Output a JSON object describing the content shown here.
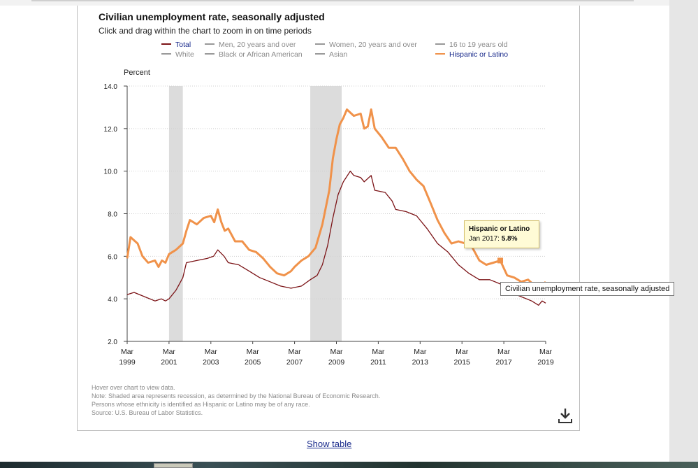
{
  "page": {
    "show_table_label": "Show table"
  },
  "notes": [
    "Hover over chart to view data.",
    "Note: Shaded area represents recession, as determined by the National Bureau of Economic Research.",
    "Persons whose ethnicity is identified as Hispanic or Latino may be of any race.",
    "Source: U.S. Bureau of Labor Statistics."
  ],
  "tooltip": {
    "series": "Hispanic or Latino",
    "label": "Jan 2017:",
    "value": "5.8%"
  },
  "hover_title": "Civilian unemployment rate, seasonally adjusted",
  "icons": {
    "download": "download-icon"
  },
  "colors": {
    "total": "#7b1316",
    "hispanic": "#f0924a",
    "inactive": "#999999",
    "recession": "#dcdcdc"
  },
  "chart_data": {
    "type": "line",
    "title": "Civilian unemployment rate, seasonally adjusted",
    "subtitle": "Click and drag within the chart to zoom in on time periods",
    "ylabel": "Percent",
    "ylim": [
      2.0,
      14.0
    ],
    "yticks": [
      "14.0",
      "12.0",
      "10.0",
      "8.0",
      "6.0",
      "4.0",
      "2.0"
    ],
    "xlim": [
      1999.17,
      2019.17
    ],
    "xticks": [
      {
        "x": 1999.17,
        "month": "Mar",
        "year": "1999"
      },
      {
        "x": 2001.17,
        "month": "Mar",
        "year": "2001"
      },
      {
        "x": 2003.17,
        "month": "Mar",
        "year": "2003"
      },
      {
        "x": 2005.17,
        "month": "Mar",
        "year": "2005"
      },
      {
        "x": 2007.17,
        "month": "Mar",
        "year": "2007"
      },
      {
        "x": 2009.17,
        "month": "Mar",
        "year": "2009"
      },
      {
        "x": 2011.17,
        "month": "Mar",
        "year": "2011"
      },
      {
        "x": 2013.17,
        "month": "Mar",
        "year": "2013"
      },
      {
        "x": 2015.17,
        "month": "Mar",
        "year": "2015"
      },
      {
        "x": 2017.17,
        "month": "Mar",
        "year": "2017"
      },
      {
        "x": 2019.17,
        "month": "Mar",
        "year": "2019"
      }
    ],
    "grid": true,
    "legend_position": "top",
    "recessions": [
      [
        2001.17,
        2001.83
      ],
      [
        2007.92,
        2009.42
      ]
    ],
    "legend": [
      {
        "name": "Total",
        "active": true,
        "color": "#7b1316"
      },
      {
        "name": "Men, 20 years and over",
        "active": false,
        "color": "#999999"
      },
      {
        "name": "Women, 20 years and over",
        "active": false,
        "color": "#999999"
      },
      {
        "name": "16 to 19 years old",
        "active": false,
        "color": "#999999"
      },
      {
        "name": "White",
        "active": false,
        "color": "#999999"
      },
      {
        "name": "Black or African American",
        "active": false,
        "color": "#999999"
      },
      {
        "name": "Asian",
        "active": false,
        "color": "#999999"
      },
      {
        "name": "Hispanic or Latino",
        "active": true,
        "color": "#f0924a"
      }
    ],
    "series": [
      {
        "name": "Total",
        "color": "#7b1316",
        "width": 1.3,
        "points": [
          [
            1999.17,
            4.2
          ],
          [
            1999.5,
            4.3
          ],
          [
            2000.0,
            4.1
          ],
          [
            2000.5,
            3.9
          ],
          [
            2000.8,
            4.0
          ],
          [
            2001.0,
            3.9
          ],
          [
            2001.17,
            4.0
          ],
          [
            2001.5,
            4.4
          ],
          [
            2001.83,
            5.0
          ],
          [
            2002.0,
            5.7
          ],
          [
            2002.5,
            5.8
          ],
          [
            2003.0,
            5.9
          ],
          [
            2003.3,
            6.0
          ],
          [
            2003.5,
            6.3
          ],
          [
            2003.8,
            6.0
          ],
          [
            2004.0,
            5.7
          ],
          [
            2004.5,
            5.6
          ],
          [
            2005.0,
            5.3
          ],
          [
            2005.5,
            5.0
          ],
          [
            2006.0,
            4.8
          ],
          [
            2006.5,
            4.6
          ],
          [
            2007.0,
            4.5
          ],
          [
            2007.5,
            4.6
          ],
          [
            2007.92,
            4.9
          ],
          [
            2008.25,
            5.1
          ],
          [
            2008.5,
            5.6
          ],
          [
            2008.75,
            6.5
          ],
          [
            2009.0,
            7.8
          ],
          [
            2009.25,
            8.9
          ],
          [
            2009.5,
            9.5
          ],
          [
            2009.83,
            10.0
          ],
          [
            2010.0,
            9.8
          ],
          [
            2010.33,
            9.7
          ],
          [
            2010.5,
            9.5
          ],
          [
            2010.83,
            9.8
          ],
          [
            2011.0,
            9.1
          ],
          [
            2011.5,
            9.0
          ],
          [
            2011.83,
            8.6
          ],
          [
            2012.0,
            8.2
          ],
          [
            2012.5,
            8.1
          ],
          [
            2013.0,
            7.9
          ],
          [
            2013.5,
            7.3
          ],
          [
            2014.0,
            6.6
          ],
          [
            2014.5,
            6.2
          ],
          [
            2015.0,
            5.6
          ],
          [
            2015.5,
            5.2
          ],
          [
            2016.0,
            4.9
          ],
          [
            2016.5,
            4.9
          ],
          [
            2017.0,
            4.7
          ],
          [
            2017.5,
            4.3
          ],
          [
            2018.0,
            4.1
          ],
          [
            2018.5,
            3.9
          ],
          [
            2018.83,
            3.7
          ],
          [
            2019.0,
            3.9
          ],
          [
            2019.17,
            3.8
          ]
        ]
      },
      {
        "name": "Hispanic or Latino",
        "color": "#f0924a",
        "width": 3,
        "points": [
          [
            1999.17,
            5.9
          ],
          [
            1999.33,
            6.9
          ],
          [
            1999.67,
            6.6
          ],
          [
            1999.9,
            6.0
          ],
          [
            2000.17,
            5.7
          ],
          [
            2000.5,
            5.8
          ],
          [
            2000.67,
            5.5
          ],
          [
            2000.83,
            5.8
          ],
          [
            2001.0,
            5.7
          ],
          [
            2001.17,
            6.1
          ],
          [
            2001.5,
            6.3
          ],
          [
            2001.83,
            6.6
          ],
          [
            2002.0,
            7.2
          ],
          [
            2002.17,
            7.7
          ],
          [
            2002.5,
            7.5
          ],
          [
            2002.83,
            7.8
          ],
          [
            2003.17,
            7.9
          ],
          [
            2003.33,
            7.6
          ],
          [
            2003.5,
            8.2
          ],
          [
            2003.67,
            7.6
          ],
          [
            2003.83,
            7.2
          ],
          [
            2004.0,
            7.3
          ],
          [
            2004.33,
            6.7
          ],
          [
            2004.67,
            6.7
          ],
          [
            2005.0,
            6.3
          ],
          [
            2005.33,
            6.2
          ],
          [
            2005.67,
            5.9
          ],
          [
            2006.0,
            5.5
          ],
          [
            2006.33,
            5.2
          ],
          [
            2006.67,
            5.1
          ],
          [
            2007.0,
            5.3
          ],
          [
            2007.17,
            5.5
          ],
          [
            2007.5,
            5.8
          ],
          [
            2007.83,
            6.0
          ],
          [
            2008.17,
            6.4
          ],
          [
            2008.5,
            7.5
          ],
          [
            2008.83,
            9.1
          ],
          [
            2009.0,
            10.6
          ],
          [
            2009.17,
            11.5
          ],
          [
            2009.33,
            12.2
          ],
          [
            2009.5,
            12.5
          ],
          [
            2009.67,
            12.9
          ],
          [
            2010.0,
            12.6
          ],
          [
            2010.33,
            12.7
          ],
          [
            2010.5,
            12.0
          ],
          [
            2010.67,
            12.1
          ],
          [
            2010.83,
            12.9
          ],
          [
            2011.0,
            12.0
          ],
          [
            2011.33,
            11.6
          ],
          [
            2011.67,
            11.1
          ],
          [
            2012.0,
            11.1
          ],
          [
            2012.33,
            10.6
          ],
          [
            2012.67,
            10.0
          ],
          [
            2013.0,
            9.6
          ],
          [
            2013.33,
            9.3
          ],
          [
            2013.67,
            8.5
          ],
          [
            2014.0,
            7.7
          ],
          [
            2014.33,
            7.1
          ],
          [
            2014.67,
            6.6
          ],
          [
            2015.0,
            6.7
          ],
          [
            2015.33,
            6.6
          ],
          [
            2015.67,
            6.4
          ],
          [
            2016.0,
            5.8
          ],
          [
            2016.33,
            5.6
          ],
          [
            2016.67,
            5.7
          ],
          [
            2017.0,
            5.8
          ],
          [
            2017.33,
            5.1
          ],
          [
            2017.67,
            5.0
          ],
          [
            2018.0,
            4.8
          ],
          [
            2018.33,
            4.9
          ],
          [
            2018.67,
            4.6
          ],
          [
            2019.0,
            4.6
          ],
          [
            2019.17,
            4.8
          ]
        ]
      }
    ]
  }
}
